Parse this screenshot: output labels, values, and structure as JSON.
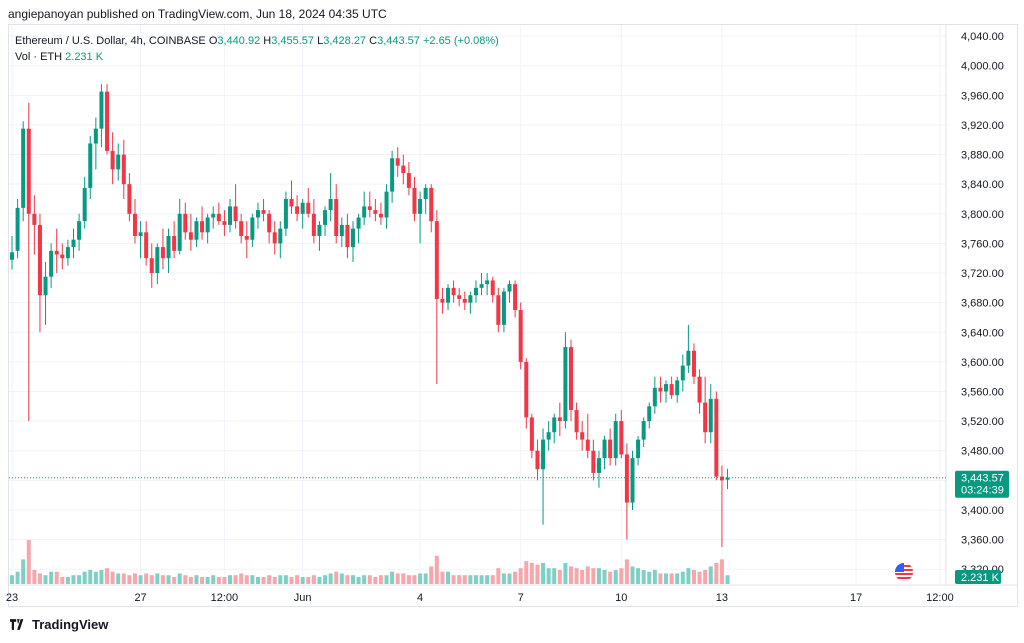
{
  "header": {
    "text": "angiepanoyan published on TradingView.com, Jun 18, 2024 04:35 UTC"
  },
  "legend": {
    "symbol": "Ethereum / U.S. Dollar, 4h, COINBASE",
    "open_label": "O",
    "open": "3,440.92",
    "high_label": "H",
    "high": "3,455.57",
    "low_label": "L",
    "low": "3,428.27",
    "close_label": "C",
    "close": "3,443.57",
    "change": "+2.65 (+0.08%)",
    "vol_label": "Vol · ETH",
    "vol": "2.231 K"
  },
  "price_tag": {
    "price": "3,443.57",
    "countdown": "03:24:39"
  },
  "volume_tag": "2.231 K",
  "footer": {
    "brand": "TradingView"
  },
  "colors": {
    "up": "#089981",
    "down": "#f23645",
    "up_vol": "#7fd0c4",
    "down_vol": "#f7a6ab",
    "grid": "#f0f3fa"
  },
  "chart_data": {
    "type": "candlestick",
    "title": "Ethereum / U.S. Dollar, 4h, COINBASE",
    "interval": "4h",
    "y_axis_ticks": [
      "4,040.00",
      "4,000.00",
      "3,960.00",
      "3,920.00",
      "3,880.00",
      "3,840.00",
      "3,800.00",
      "3,760.00",
      "3,720.00",
      "3,680.00",
      "3,640.00",
      "3,600.00",
      "3,560.00",
      "3,520.00",
      "3,480.00",
      "3,440.00",
      "3,400.00",
      "3,360.00",
      "3,320.00"
    ],
    "y_range": [
      3300,
      4055
    ],
    "x_axis_labels": [
      {
        "label": "23",
        "bar": 0
      },
      {
        "label": "27",
        "bar": 23
      },
      {
        "label": "12:00",
        "bar": 38
      },
      {
        "label": "Jun",
        "bar": 52
      },
      {
        "label": "4",
        "bar": 73
      },
      {
        "label": "7",
        "bar": 91
      },
      {
        "label": "10",
        "bar": 109
      },
      {
        "label": "13",
        "bar": 127
      },
      {
        "label": "17",
        "bar": 151
      },
      {
        "label": "12:00",
        "bar": 166
      }
    ],
    "last_price": 3443.57,
    "ohlcv": [
      [
        3738,
        3770,
        3725,
        3748,
        5
      ],
      [
        3750,
        3820,
        3740,
        3808,
        7
      ],
      [
        3808,
        3925,
        3790,
        3915,
        14
      ],
      [
        3915,
        3950,
        3520,
        3800,
        25
      ],
      [
        3800,
        3825,
        3745,
        3785,
        8
      ],
      [
        3785,
        3800,
        3640,
        3690,
        6
      ],
      [
        3690,
        3735,
        3650,
        3715,
        5
      ],
      [
        3715,
        3760,
        3700,
        3750,
        7
      ],
      [
        3750,
        3780,
        3720,
        3745,
        7
      ],
      [
        3745,
        3760,
        3725,
        3740,
        4
      ],
      [
        3740,
        3765,
        3730,
        3755,
        4
      ],
      [
        3755,
        3780,
        3740,
        3765,
        5
      ],
      [
        3765,
        3800,
        3750,
        3790,
        5
      ],
      [
        3790,
        3850,
        3780,
        3835,
        7
      ],
      [
        3835,
        3905,
        3820,
        3895,
        8
      ],
      [
        3895,
        3930,
        3860,
        3915,
        7
      ],
      [
        3915,
        3975,
        3890,
        3965,
        8
      ],
      [
        3965,
        3975,
        3880,
        3885,
        9
      ],
      [
        3885,
        3910,
        3840,
        3860,
        7
      ],
      [
        3860,
        3895,
        3845,
        3880,
        6
      ],
      [
        3880,
        3900,
        3820,
        3840,
        6
      ],
      [
        3840,
        3855,
        3790,
        3800,
        5
      ],
      [
        3800,
        3820,
        3760,
        3770,
        6
      ],
      [
        3770,
        3790,
        3740,
        3775,
        5
      ],
      [
        3775,
        3790,
        3730,
        3740,
        6
      ],
      [
        3740,
        3760,
        3700,
        3720,
        5
      ],
      [
        3720,
        3760,
        3705,
        3755,
        6
      ],
      [
        3755,
        3780,
        3725,
        3740,
        5
      ],
      [
        3740,
        3780,
        3720,
        3770,
        5
      ],
      [
        3770,
        3790,
        3740,
        3750,
        4
      ],
      [
        3750,
        3820,
        3745,
        3800,
        6
      ],
      [
        3800,
        3815,
        3765,
        3775,
        5
      ],
      [
        3775,
        3800,
        3750,
        3765,
        4
      ],
      [
        3765,
        3795,
        3755,
        3790,
        5
      ],
      [
        3790,
        3810,
        3765,
        3775,
        4
      ],
      [
        3775,
        3800,
        3760,
        3795,
        4
      ],
      [
        3795,
        3810,
        3780,
        3800,
        5
      ],
      [
        3800,
        3815,
        3785,
        3790,
        4
      ],
      [
        3790,
        3805,
        3770,
        3785,
        4
      ],
      [
        3785,
        3820,
        3775,
        3810,
        5
      ],
      [
        3810,
        3840,
        3780,
        3790,
        5
      ],
      [
        3790,
        3800,
        3760,
        3770,
        6
      ],
      [
        3770,
        3790,
        3740,
        3765,
        5
      ],
      [
        3765,
        3800,
        3755,
        3795,
        5
      ],
      [
        3795,
        3815,
        3780,
        3805,
        4
      ],
      [
        3805,
        3820,
        3790,
        3800,
        4
      ],
      [
        3800,
        3805,
        3760,
        3775,
        5
      ],
      [
        3775,
        3790,
        3745,
        3760,
        4
      ],
      [
        3760,
        3790,
        3740,
        3780,
        5
      ],
      [
        3780,
        3830,
        3770,
        3820,
        5
      ],
      [
        3820,
        3845,
        3800,
        3810,
        4
      ],
      [
        3810,
        3825,
        3790,
        3800,
        5
      ],
      [
        3800,
        3820,
        3780,
        3815,
        4
      ],
      [
        3815,
        3835,
        3795,
        3800,
        4
      ],
      [
        3800,
        3820,
        3760,
        3770,
        5
      ],
      [
        3770,
        3790,
        3750,
        3785,
        4
      ],
      [
        3785,
        3810,
        3770,
        3805,
        5
      ],
      [
        3805,
        3855,
        3790,
        3820,
        6
      ],
      [
        3820,
        3840,
        3760,
        3770,
        7
      ],
      [
        3770,
        3795,
        3755,
        3785,
        6
      ],
      [
        3785,
        3800,
        3740,
        3755,
        5
      ],
      [
        3755,
        3790,
        3735,
        3780,
        5
      ],
      [
        3780,
        3800,
        3760,
        3795,
        4
      ],
      [
        3795,
        3830,
        3785,
        3810,
        5
      ],
      [
        3810,
        3830,
        3795,
        3805,
        5
      ],
      [
        3805,
        3820,
        3790,
        3800,
        4
      ],
      [
        3800,
        3815,
        3785,
        3795,
        5
      ],
      [
        3795,
        3840,
        3780,
        3830,
        5
      ],
      [
        3830,
        3885,
        3815,
        3875,
        7
      ],
      [
        3875,
        3890,
        3850,
        3865,
        6
      ],
      [
        3865,
        3880,
        3840,
        3855,
        6
      ],
      [
        3855,
        3870,
        3825,
        3835,
        5
      ],
      [
        3835,
        3850,
        3790,
        3800,
        5
      ],
      [
        3800,
        3830,
        3760,
        3820,
        6
      ],
      [
        3820,
        3840,
        3800,
        3835,
        6
      ],
      [
        3835,
        3840,
        3775,
        3790,
        10
      ],
      [
        3790,
        3805,
        3570,
        3685,
        16
      ],
      [
        3685,
        3700,
        3665,
        3680,
        7
      ],
      [
        3680,
        3705,
        3670,
        3700,
        7
      ],
      [
        3700,
        3710,
        3680,
        3690,
        5
      ],
      [
        3690,
        3700,
        3675,
        3685,
        5
      ],
      [
        3685,
        3695,
        3670,
        3680,
        5
      ],
      [
        3680,
        3695,
        3665,
        3690,
        5
      ],
      [
        3690,
        3710,
        3680,
        3700,
        5
      ],
      [
        3700,
        3720,
        3690,
        3705,
        5
      ],
      [
        3705,
        3720,
        3690,
        3710,
        5
      ],
      [
        3710,
        3715,
        3680,
        3690,
        5
      ],
      [
        3690,
        3700,
        3640,
        3650,
        9
      ],
      [
        3650,
        3700,
        3640,
        3695,
        6
      ],
      [
        3695,
        3710,
        3680,
        3705,
        6
      ],
      [
        3705,
        3710,
        3660,
        3670,
        7
      ],
      [
        3670,
        3680,
        3590,
        3600,
        9
      ],
      [
        3600,
        3605,
        3510,
        3525,
        13
      ],
      [
        3525,
        3530,
        3470,
        3480,
        12
      ],
      [
        3480,
        3495,
        3440,
        3455,
        11
      ],
      [
        3455,
        3510,
        3380,
        3495,
        12
      ],
      [
        3495,
        3520,
        3480,
        3505,
        9
      ],
      [
        3505,
        3530,
        3490,
        3525,
        9
      ],
      [
        3525,
        3545,
        3500,
        3520,
        8
      ],
      [
        3520,
        3640,
        3510,
        3620,
        12
      ],
      [
        3620,
        3630,
        3520,
        3535,
        10
      ],
      [
        3535,
        3545,
        3495,
        3505,
        9
      ],
      [
        3505,
        3520,
        3480,
        3495,
        8
      ],
      [
        3495,
        3530,
        3470,
        3480,
        10
      ],
      [
        3480,
        3495,
        3440,
        3450,
        9
      ],
      [
        3450,
        3480,
        3430,
        3470,
        9
      ],
      [
        3470,
        3500,
        3455,
        3495,
        8
      ],
      [
        3495,
        3510,
        3460,
        3470,
        7
      ],
      [
        3470,
        3530,
        3460,
        3520,
        8
      ],
      [
        3520,
        3535,
        3470,
        3475,
        9
      ],
      [
        3475,
        3490,
        3360,
        3410,
        14
      ],
      [
        3410,
        3480,
        3400,
        3470,
        10
      ],
      [
        3470,
        3500,
        3460,
        3495,
        9
      ],
      [
        3495,
        3525,
        3485,
        3520,
        8
      ],
      [
        3520,
        3545,
        3510,
        3540,
        7
      ],
      [
        3540,
        3580,
        3530,
        3565,
        8
      ],
      [
        3565,
        3580,
        3545,
        3560,
        6
      ],
      [
        3560,
        3575,
        3545,
        3570,
        6
      ],
      [
        3570,
        3580,
        3550,
        3555,
        6
      ],
      [
        3555,
        3580,
        3545,
        3575,
        6
      ],
      [
        3575,
        3610,
        3560,
        3595,
        7
      ],
      [
        3595,
        3650,
        3585,
        3615,
        9
      ],
      [
        3615,
        3625,
        3570,
        3580,
        8
      ],
      [
        3580,
        3590,
        3530,
        3545,
        7
      ],
      [
        3545,
        3580,
        3490,
        3505,
        8
      ],
      [
        3505,
        3570,
        3490,
        3550,
        10
      ],
      [
        3550,
        3560,
        3440,
        3445,
        12
      ],
      [
        3445,
        3460,
        3350,
        3440,
        14
      ],
      [
        3440.92,
        3455.57,
        3428.27,
        3443.57,
        5
      ]
    ]
  }
}
